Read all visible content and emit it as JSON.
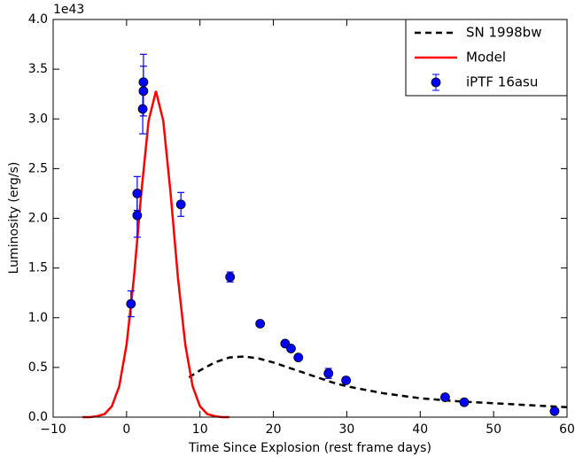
{
  "chart_data": {
    "type": "scatter",
    "xlabel": "Time Since Explosion (rest frame days)",
    "ylabel": "Luminosity (erg/s)",
    "y_offset_label": "1e43",
    "xlim": [
      -10,
      60
    ],
    "xticks": [
      {
        "value": -10,
        "label": "−10"
      },
      0,
      10,
      20,
      30,
      40,
      50,
      60
    ],
    "ylim": [
      0,
      4
    ],
    "yticks": [
      {
        "value": 0,
        "label": "0.0"
      },
      0.5,
      {
        "value": 1,
        "label": "1.0"
      },
      1.5,
      {
        "value": 2,
        "label": "2.0"
      },
      2.5,
      {
        "value": 3,
        "label": "3.0"
      },
      3.5,
      {
        "value": 4,
        "label": "4.0"
      }
    ],
    "legend": "upper right",
    "series": [
      {
        "name": "SN 1998bw",
        "type": "line",
        "color": "#000000",
        "linestyle": "dashed",
        "x": [
          8.5,
          10,
          12,
          14,
          16,
          18,
          20,
          22,
          24,
          26,
          28,
          30,
          35,
          40,
          45,
          50,
          55,
          60
        ],
        "values": [
          0.4,
          0.47,
          0.55,
          0.6,
          0.61,
          0.59,
          0.55,
          0.5,
          0.45,
          0.4,
          0.35,
          0.31,
          0.24,
          0.19,
          0.16,
          0.14,
          0.12,
          0.1
        ]
      },
      {
        "name": "Model",
        "type": "line",
        "color": "#ff0000",
        "linestyle": "solid",
        "x": [
          -6,
          -5,
          -4,
          -3,
          -2,
          -1,
          0,
          1,
          2,
          3,
          4,
          5,
          6,
          7,
          8,
          9,
          10,
          11,
          12,
          13,
          14
        ],
        "values": [
          0.0,
          0.0,
          0.01,
          0.03,
          0.11,
          0.31,
          0.73,
          1.4,
          2.25,
          2.98,
          3.28,
          2.98,
          2.25,
          1.4,
          0.73,
          0.31,
          0.11,
          0.03,
          0.01,
          0.0,
          0.0
        ]
      },
      {
        "name": "iPTF 16asu",
        "type": "errorbar",
        "color": "#0000ff",
        "x": [
          0.6,
          1.45,
          1.45,
          2.2,
          2.3,
          2.3,
          7.4,
          14.1,
          18.2,
          21.6,
          22.4,
          23.4,
          27.5,
          29.9,
          43.4,
          46.0,
          58.3
        ],
        "values": [
          1.14,
          2.03,
          2.25,
          3.1,
          3.28,
          3.37,
          2.14,
          1.41,
          0.94,
          0.74,
          0.69,
          0.6,
          0.44,
          0.37,
          0.2,
          0.15,
          0.06
        ],
        "errors": [
          0.13,
          0.22,
          0.17,
          0.25,
          0.25,
          0.28,
          0.12,
          0.05,
          0.02,
          0.02,
          0.02,
          0.02,
          0.05,
          0.03,
          0.03,
          0.02,
          0.02
        ]
      }
    ]
  }
}
